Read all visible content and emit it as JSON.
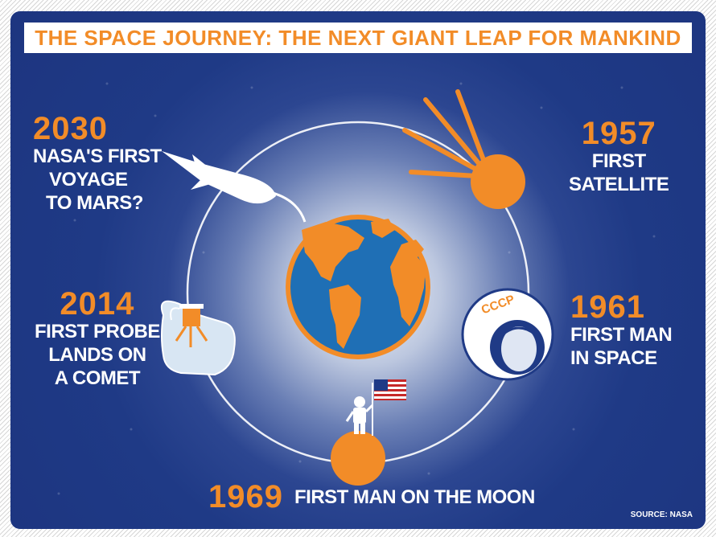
{
  "title": "THE SPACE JOURNEY: THE NEXT GIANT LEAP FOR MANKIND",
  "colors": {
    "accent": "#f28c28",
    "background": "#1f3a86",
    "ocean": "#1f6fb5",
    "text": "#ffffff"
  },
  "milestones": [
    {
      "year": "1957",
      "desc1": "FIRST",
      "desc2": "SATELLITE",
      "icon": "sputnik-icon"
    },
    {
      "year": "1961",
      "desc1": "FIRST MAN",
      "desc2": "IN SPACE",
      "icon": "cosmonaut-icon"
    },
    {
      "year": "1969",
      "desc": "FIRST MAN ON THE MOON",
      "icon": "moon-astronaut-icon"
    },
    {
      "year": "2014",
      "desc1": "FIRST PROBE",
      "desc2": "LANDS ON",
      "desc3": "A COMET",
      "icon": "comet-probe-icon"
    },
    {
      "year": "2030",
      "desc1": "NASA'S FIRST",
      "desc2": "VOYAGE",
      "desc3": "TO MARS?",
      "icon": "spacecraft-icon"
    }
  ],
  "helmet_text": "CCCP",
  "source": "SOURCE: NASA"
}
